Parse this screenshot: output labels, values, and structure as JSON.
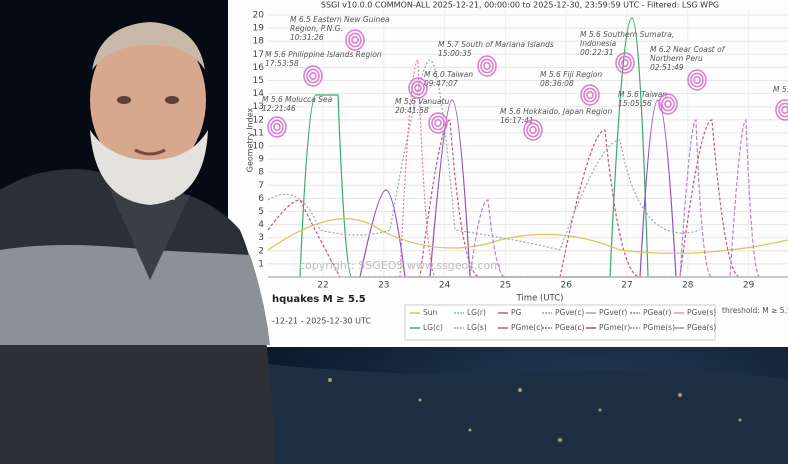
{
  "chart": {
    "title": "SSGI v10.0.0 COMMON-ALL 2025-12-21, 00:00:00 to 2025-12-30, 23:59:59 UTC - Filtered: LSG WPG",
    "y_label": "Geometry Index",
    "x_label": "Time (UTC)",
    "yticks": [
      "1",
      "2",
      "3",
      "4",
      "5",
      "6",
      "7",
      "8",
      "9",
      "10",
      "11",
      "12",
      "13",
      "14",
      "15",
      "16",
      "17",
      "18",
      "19",
      "20"
    ],
    "xticks": [
      "22",
      "23",
      "24",
      "25",
      "26",
      "27",
      "28",
      "29"
    ],
    "watermark": "copyright: SSGEOS www.ssgeos.com",
    "threshold": "threshold: M ≥ 5.5",
    "annotations": [
      [
        "M 6.5 Eastern New Guinea",
        "Region, P.N.G.",
        "10:31:26"
      ],
      [
        "M 5.6 Philippine Islands Region",
        "17:53:58"
      ],
      [
        "M 5.6 Molucca Sea",
        "12:21:46"
      ],
      [
        "M 5.6 Vanuatu",
        "20:41:58"
      ],
      [
        "M 6.0 Taiwan",
        "09:47:07"
      ],
      [
        "M 5.7 South of Mariana Islands",
        "15:00:35"
      ],
      [
        "M 5.6 Fiji Region",
        "08:36:08"
      ],
      [
        "M 5.6 Hokkaido, Japan Region",
        "16:17:41"
      ],
      [
        "M 5.6 Southern Sumatra,",
        "Indonesia",
        "00:22:31"
      ],
      [
        "M 6.2 Near Coast of",
        "Northern Peru",
        "02:51:49"
      ],
      [
        "M 5.6 Taiwan",
        "15:05:56"
      ],
      [
        "M 5."
      ]
    ],
    "legend": [
      [
        "Sun",
        "LG(r)",
        "PG",
        "PGve(c)",
        "PGve(r)",
        "PGea(r)",
        "PGve(s)"
      ],
      [
        "LG(c)",
        "LG(s)",
        "PGme(c)",
        "PGea(c)",
        "PGme(r)",
        "PGme(s)",
        "PGea(s)"
      ]
    ]
  },
  "caption": {
    "line1": "hquakes M ≥ 5.5",
    "line2": "-12-21 - 2025-12-30 UTC"
  }
}
